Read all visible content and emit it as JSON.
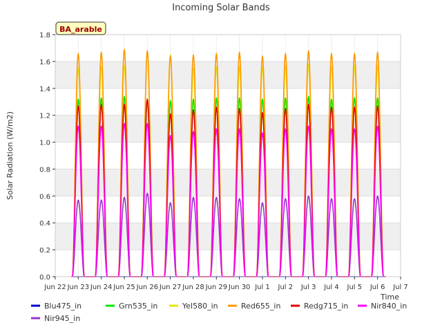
{
  "chart_data": {
    "type": "line",
    "title": "Incoming Solar Bands",
    "xlabel": "Time",
    "ylabel": "Solar Radiation (W/m2)",
    "site_label": "BA_arable",
    "ylim": [
      0,
      1.8
    ],
    "xlim": [
      "2021-06-22",
      "2021-07-07"
    ],
    "x_tick_labels": [
      "Jun 22",
      "Jun 23",
      "Jun 24",
      "Jun 25",
      "Jun 26",
      "Jun 27",
      "Jun 28",
      "Jun 29",
      "Jun 30",
      "Jul 1",
      "Jul 2",
      "Jul 3",
      "Jul 4",
      "Jul 5",
      "Jul 6",
      "Jul 7"
    ],
    "y_tick_labels": [
      "0.0",
      "0.2",
      "0.4",
      "0.6",
      "0.8",
      "1.0",
      "1.2",
      "1.4",
      "1.6",
      "1.8"
    ],
    "grid": true,
    "legend_position": "bottom",
    "days": [
      "Jun 22",
      "Jun 23",
      "Jun 24",
      "Jun 25",
      "Jun 26",
      "Jun 27",
      "Jun 28",
      "Jun 29",
      "Jun 30",
      "Jul 1",
      "Jul 2",
      "Jul 3",
      "Jul 4",
      "Jul 5"
    ],
    "series": [
      {
        "name": "Blu475_in",
        "color": "#0000cc",
        "daily_peak": [
          0,
          0,
          0,
          0,
          0,
          0,
          0,
          0,
          0,
          0,
          0,
          0,
          0,
          0
        ]
      },
      {
        "name": "Grn535_in",
        "color": "#00e600",
        "daily_peak": [
          1.32,
          1.33,
          1.34,
          1.3,
          1.31,
          1.32,
          1.33,
          1.33,
          1.32,
          1.33,
          1.34,
          1.32,
          1.33,
          1.33
        ]
      },
      {
        "name": "Yel580_in",
        "color": "#e6e600",
        "daily_peak": [
          1.55,
          1.56,
          1.57,
          1.67,
          1.65,
          1.55,
          1.56,
          1.56,
          1.56,
          1.57,
          1.58,
          1.56,
          1.57,
          1.57
        ]
      },
      {
        "name": "Red655_in",
        "color": "#ff9900",
        "daily_peak": [
          1.66,
          1.67,
          1.69,
          1.68,
          1.64,
          1.65,
          1.66,
          1.67,
          1.64,
          1.66,
          1.68,
          1.66,
          1.66,
          1.67
        ]
      },
      {
        "name": "Redg715_in",
        "color": "#dd0000",
        "daily_peak": [
          1.27,
          1.28,
          1.28,
          1.32,
          1.21,
          1.24,
          1.26,
          1.25,
          1.22,
          1.25,
          1.28,
          1.26,
          1.26,
          1.27
        ]
      },
      {
        "name": "Nir840_in",
        "color": "#ff00ff",
        "daily_peak": [
          1.12,
          1.12,
          1.14,
          1.14,
          1.05,
          1.08,
          1.1,
          1.1,
          1.07,
          1.1,
          1.12,
          1.1,
          1.1,
          1.12
        ]
      },
      {
        "name": "Nir945_in",
        "color": "#9933cc",
        "daily_peak": [
          0.57,
          0.57,
          0.59,
          0.62,
          0.55,
          0.59,
          0.59,
          0.58,
          0.55,
          0.58,
          0.6,
          0.58,
          0.58,
          0.6
        ]
      }
    ]
  }
}
